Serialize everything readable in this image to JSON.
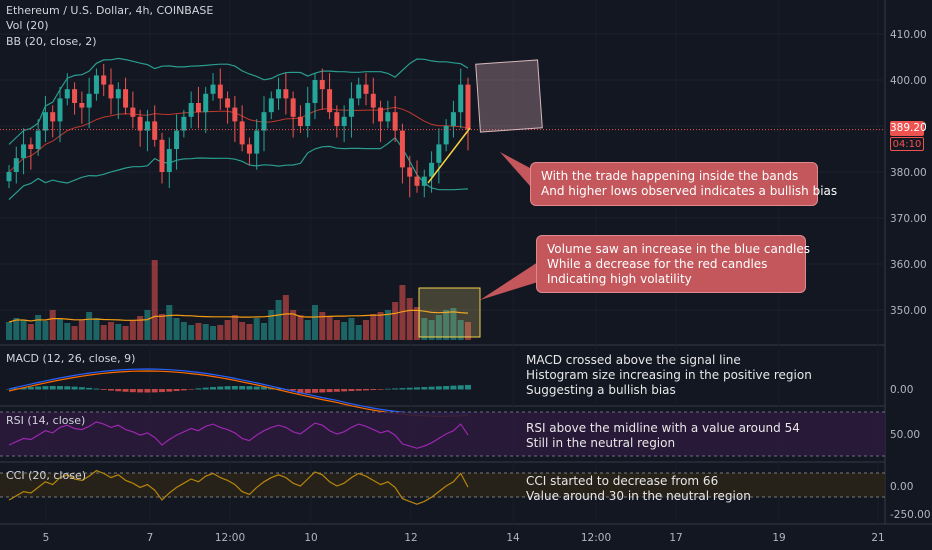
{
  "header": {
    "symbol": "Ethereum / U.S. Dollar, 4h, COINBASE",
    "vol_label": "Vol (20)",
    "bb_label": "BB (20, close, 2)"
  },
  "price_axis": {
    "ticks": [
      "410.00",
      "400.00",
      "390.00",
      "380.00",
      "370.00",
      "360.00",
      "350.00"
    ],
    "last_price": "389.20",
    "countdown": "04:10"
  },
  "time_axis": {
    "labels": [
      "5",
      "7",
      "12:00",
      "10",
      "12",
      "14",
      "12:00",
      "17",
      "19",
      "21"
    ]
  },
  "macd": {
    "label": "MACD (12, 26, close, 9)",
    "ticks": [
      "0.00"
    ]
  },
  "rsi": {
    "label": "RSI (14, close)",
    "ticks": [
      "50.00"
    ]
  },
  "cci": {
    "label": "CCI (20, close)",
    "ticks": [
      "0.00",
      "-250.00"
    ]
  },
  "annotations": {
    "bb_note": [
      "With the trade happening inside the bands",
      "And higher lows observed indicates a bullish bias"
    ],
    "vol_note": [
      "Volume saw an increase in the blue candles",
      "While a decrease for the red candles",
      "Indicating high volatility"
    ],
    "macd_note": [
      "MACD crossed above the signal line",
      "Histogram size increasing in the positive region",
      "Suggesting a bullish bias"
    ],
    "rsi_note": [
      "RSI above the midline with a value around 54",
      "Still in the neutral region"
    ],
    "cci_note": [
      "CCI started to decrease from 66",
      "Value around 30 in the neutral region"
    ]
  },
  "colors": {
    "background": "#131722",
    "up": "#26a69a",
    "down": "#ef5350",
    "bb_band": "#2a9d8f",
    "bb_basis": "#c0392b",
    "vol_ma": "#f39c12",
    "macd_line": "#2962ff",
    "signal_line": "#ff6d00",
    "rsi_line": "#9c27b0",
    "cci_line": "#b8860b",
    "callout": "#c4575c"
  },
  "chart_data": {
    "type": "candlestick",
    "ylim": [
      345,
      414
    ],
    "close_series": [
      380,
      383,
      386,
      385,
      389,
      393,
      391,
      396,
      398,
      395,
      394,
      397,
      401,
      399,
      396,
      398,
      394,
      392,
      389,
      391,
      387,
      380,
      385,
      389,
      392,
      395,
      393,
      397,
      399,
      396,
      394,
      391,
      386,
      384,
      389,
      393,
      396,
      398,
      396,
      392,
      390,
      395,
      400,
      398,
      393,
      390,
      392,
      396,
      399,
      397,
      394,
      391,
      393,
      389,
      381,
      379,
      377,
      379,
      382,
      386,
      390,
      393,
      399,
      389.2
    ],
    "volume": [
      0.18,
      0.22,
      0.2,
      0.16,
      0.25,
      0.19,
      0.3,
      0.21,
      0.17,
      0.14,
      0.2,
      0.28,
      0.22,
      0.15,
      0.18,
      0.16,
      0.14,
      0.2,
      0.24,
      0.3,
      0.8,
      0.26,
      0.35,
      0.22,
      0.18,
      0.15,
      0.17,
      0.16,
      0.14,
      0.15,
      0.2,
      0.25,
      0.18,
      0.16,
      0.22,
      0.17,
      0.3,
      0.4,
      0.45,
      0.3,
      0.25,
      0.2,
      0.35,
      0.28,
      0.24,
      0.2,
      0.18,
      0.22,
      0.15,
      0.2,
      0.26,
      0.28,
      0.3,
      0.38,
      0.55,
      0.42,
      0.33,
      0.22,
      0.2,
      0.25,
      0.3,
      0.32,
      0.2,
      0.18
    ],
    "rsi_midline": 50,
    "rsi_band": [
      30,
      70
    ],
    "cci_band": [
      -100,
      100
    ]
  }
}
